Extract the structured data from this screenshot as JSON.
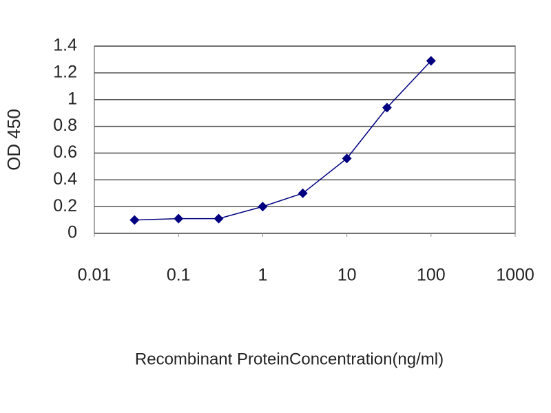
{
  "chart_data": {
    "type": "line",
    "log_x": true,
    "grid": true,
    "x_label": "Recombinant ProteinConcentration(ng/ml)",
    "y_label": "OD 450",
    "x": [
      0.03,
      0.1,
      0.3,
      1,
      3,
      10,
      30,
      100
    ],
    "series": [
      {
        "color": "#000080",
        "values": [
          0.1,
          0.11,
          0.11,
          0.2,
          0.3,
          0.56,
          0.94,
          1.29
        ]
      }
    ],
    "xlim": [
      0.01,
      1000
    ],
    "xticks": [
      0.01,
      0.1,
      1,
      10,
      100,
      1000
    ],
    "ylim": [
      0,
      1.4
    ],
    "yticks": [
      0,
      0.2,
      0.4,
      0.6,
      0.8,
      1,
      1.2,
      1.4
    ]
  }
}
